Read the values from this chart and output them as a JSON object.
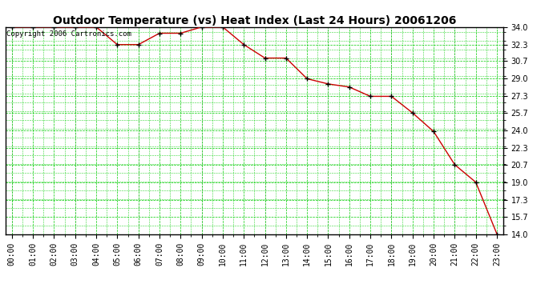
{
  "title": "Outdoor Temperature (vs) Heat Index (Last 24 Hours) 20061206",
  "copyright_text": "Copyright 2006 Cartronics.com",
  "hours": [
    0,
    1,
    2,
    3,
    4,
    5,
    6,
    7,
    8,
    9,
    10,
    11,
    12,
    13,
    14,
    15,
    16,
    17,
    18,
    19,
    20,
    21,
    22,
    23
  ],
  "hour_labels": [
    "00:00",
    "01:00",
    "02:00",
    "03:00",
    "04:00",
    "05:00",
    "06:00",
    "07:00",
    "08:00",
    "09:00",
    "10:00",
    "11:00",
    "12:00",
    "13:00",
    "14:00",
    "15:00",
    "16:00",
    "17:00",
    "18:00",
    "19:00",
    "20:00",
    "21:00",
    "22:00",
    "23:00"
  ],
  "heat_values": [
    34.0,
    34.0,
    34.0,
    34.0,
    34.0,
    32.3,
    32.3,
    33.4,
    33.4,
    34.0,
    34.0,
    32.3,
    31.0,
    31.0,
    29.0,
    28.5,
    28.2,
    27.3,
    27.3,
    25.7,
    23.9,
    20.7,
    19.0,
    14.0
  ],
  "ymin": 14.0,
  "ymax": 34.0,
  "yticks": [
    14.0,
    15.7,
    17.3,
    19.0,
    20.7,
    22.3,
    24.0,
    25.7,
    27.3,
    29.0,
    30.7,
    32.3,
    34.0
  ],
  "line_color": "#cc0000",
  "marker_color": "#000000",
  "bg_color": "#ffffff",
  "grid_color_major": "#00cc00",
  "grid_color_minor": "#00cc00",
  "title_fontsize": 10,
  "copyright_fontsize": 6.5,
  "tick_fontsize": 7
}
